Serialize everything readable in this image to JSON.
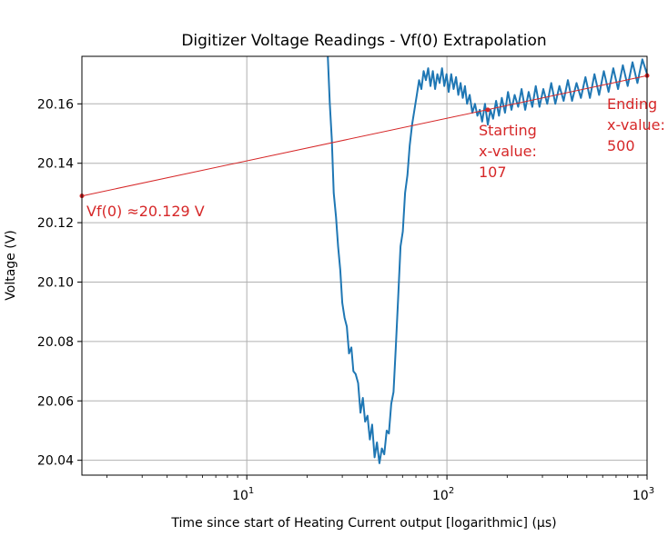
{
  "chart_data": {
    "type": "line",
    "title": "Digitizer Voltage Readings - Vf(0) Extrapolation",
    "xlabel": "Time since start of Heating Current output [logarithmic] (µs)",
    "ylabel": "Voltage (V)",
    "x_scale": "log",
    "xlim": [
      1.5,
      1000
    ],
    "ylim": [
      20.035,
      20.176
    ],
    "grid": true,
    "x_major_ticks": [
      {
        "value": 10,
        "base": "10",
        "exp": "1"
      },
      {
        "value": 100,
        "base": "10",
        "exp": "2"
      },
      {
        "value": 1000,
        "base": "10",
        "exp": "3"
      }
    ],
    "y_ticks": [
      {
        "value": 20.04,
        "label": "20.04"
      },
      {
        "value": 20.06,
        "label": "20.06"
      },
      {
        "value": 20.08,
        "label": "20.08"
      },
      {
        "value": 20.1,
        "label": "20.10"
      },
      {
        "value": 20.12,
        "label": "20.12"
      },
      {
        "value": 20.14,
        "label": "20.14"
      },
      {
        "value": 20.16,
        "label": "20.16"
      }
    ],
    "series": [
      {
        "color": "#1f77b4",
        "x": [
          25.4,
          26.0,
          26.6,
          27.2,
          27.9,
          28.6,
          29.3,
          30.0,
          30.8,
          31.6,
          32.4,
          33.3,
          34.1,
          35.0,
          36.0,
          37.0,
          38.0,
          39.0,
          40.1,
          41.2,
          42.3,
          43.5,
          44.7,
          46.0,
          47.3,
          48.6,
          50.0,
          51.3,
          52.7,
          54.1,
          55.5,
          57.0,
          58.6,
          60.2,
          61.8,
          63.5,
          65.2,
          67.0,
          68.8,
          70.7,
          72.6,
          74.5,
          76.5,
          78.5,
          80.6,
          82.7,
          85.0,
          87.3,
          89.6,
          92.0,
          94.5,
          97.0,
          99.6,
          102,
          105,
          108,
          111,
          114,
          117,
          120,
          123,
          126,
          130,
          134,
          138,
          142,
          146,
          150,
          155,
          160,
          165,
          170,
          176,
          182,
          188,
          195,
          202,
          210,
          218,
          227,
          236,
          246,
          256,
          267,
          278,
          290,
          303,
          317,
          332,
          348,
          365,
          383,
          402,
          422,
          444,
          467,
          492,
          518,
          546,
          576,
          608,
          642,
          678,
          716,
          757,
          800,
          846,
          895,
          947,
          1000
        ],
        "y": [
          20.176,
          20.16,
          20.148,
          20.13,
          20.122,
          20.112,
          20.104,
          20.093,
          20.088,
          20.085,
          20.076,
          20.078,
          20.07,
          20.069,
          20.066,
          20.056,
          20.061,
          20.053,
          20.055,
          20.047,
          20.052,
          20.041,
          20.046,
          20.039,
          20.044,
          20.042,
          20.05,
          20.049,
          20.059,
          20.063,
          20.078,
          20.094,
          20.112,
          20.117,
          20.13,
          20.136,
          20.146,
          20.153,
          20.158,
          20.163,
          20.168,
          20.165,
          20.171,
          20.168,
          20.172,
          20.166,
          20.171,
          20.165,
          20.17,
          20.167,
          20.172,
          20.166,
          20.17,
          20.164,
          20.17,
          20.165,
          20.169,
          20.163,
          20.167,
          20.162,
          20.166,
          20.16,
          20.163,
          20.157,
          20.16,
          20.156,
          20.158,
          20.154,
          20.16,
          20.153,
          20.158,
          20.155,
          20.161,
          20.156,
          20.162,
          20.157,
          20.164,
          20.158,
          20.163,
          20.159,
          20.165,
          20.158,
          20.164,
          20.159,
          20.166,
          20.159,
          20.165,
          20.16,
          20.167,
          20.16,
          20.166,
          20.161,
          20.168,
          20.161,
          20.167,
          20.162,
          20.169,
          20.162,
          20.17,
          20.163,
          20.171,
          20.164,
          20.172,
          20.165,
          20.173,
          20.166,
          20.174,
          20.167,
          20.175,
          20.17
        ]
      },
      {
        "color": "#d62728",
        "x": [
          1.5,
          1000
        ],
        "y": [
          20.129,
          20.1695
        ]
      }
    ],
    "markers": [
      {
        "x": 1.5,
        "y": 20.129
      },
      {
        "x": 160,
        "y": 20.158
      },
      {
        "x": 1000,
        "y": 20.1695
      }
    ],
    "annotations": [
      {
        "lines": [
          "Vf(0) ≈20.129 V"
        ],
        "color": "#d62728"
      },
      {
        "lines": [
          "Starting",
          "x-value:",
          "107"
        ],
        "color": "#d62728"
      },
      {
        "lines": [
          "Ending",
          "x-value:",
          "500"
        ],
        "color": "#d62728"
      }
    ]
  }
}
